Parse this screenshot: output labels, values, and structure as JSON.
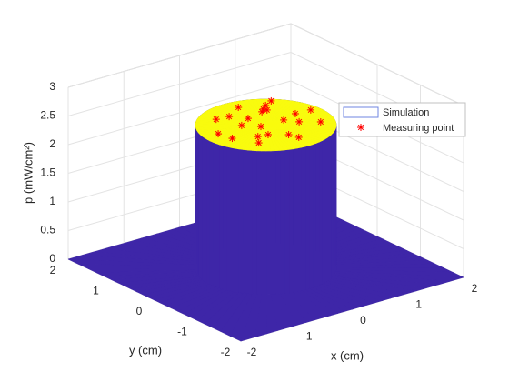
{
  "chart_data": {
    "type": "surface",
    "xlabel": "x (cm)",
    "ylabel": "y (cm)",
    "zlabel": "p (mW/cm²)",
    "xlim": [
      -2,
      2
    ],
    "ylim": [
      -2,
      2
    ],
    "zlim": [
      0,
      3
    ],
    "xticks": [
      -2,
      -1,
      0,
      1,
      2
    ],
    "yticks": [
      -2,
      -1,
      0,
      1,
      2
    ],
    "zticks": [
      0,
      0.5,
      1,
      1.5,
      2,
      2.5,
      3
    ],
    "grid": true,
    "legend_location": "northeast",
    "series": [
      {
        "name": "Simulation",
        "type": "surface",
        "colormap": [
          "#3e26a8",
          "#f9fb0e"
        ],
        "edge_color": "#6f86e0",
        "r": [
          0,
          1,
          1,
          3
        ],
        "z": [
          2.5,
          2.5,
          0,
          0
        ]
      },
      {
        "name": "Measuring point",
        "type": "scatter",
        "color": "#ff0000",
        "x": [
          0.63,
          0.46,
          0.35,
          0.37,
          0.27,
          0.11,
          -0.21,
          -0.04,
          -0.42,
          0.6,
          0.86,
          0.45,
          0.69,
          0.32,
          -0.09,
          -0.28,
          -0.2,
          0.03,
          -0.36,
          -0.74,
          -0.69,
          -0.5,
          0.08
        ],
        "y": [
          0.69,
          0.6,
          0.51,
          0.45,
          0.44,
          0.78,
          0.58,
          0.36,
          0.61,
          0.09,
          0.07,
          -0.19,
          -0.38,
          0.0,
          0.0,
          0.2,
          -0.31,
          -0.49,
          -0.28,
          0.15,
          -0.11,
          -0.48,
          -0.66
        ],
        "z": [
          2.5,
          2.5,
          2.5,
          2.5,
          2.5,
          2.5,
          2.5,
          2.5,
          2.5,
          2.5,
          2.5,
          2.5,
          2.5,
          2.5,
          2.5,
          2.5,
          2.5,
          2.5,
          2.5,
          2.5,
          2.5,
          2.5,
          2.5
        ]
      }
    ]
  }
}
